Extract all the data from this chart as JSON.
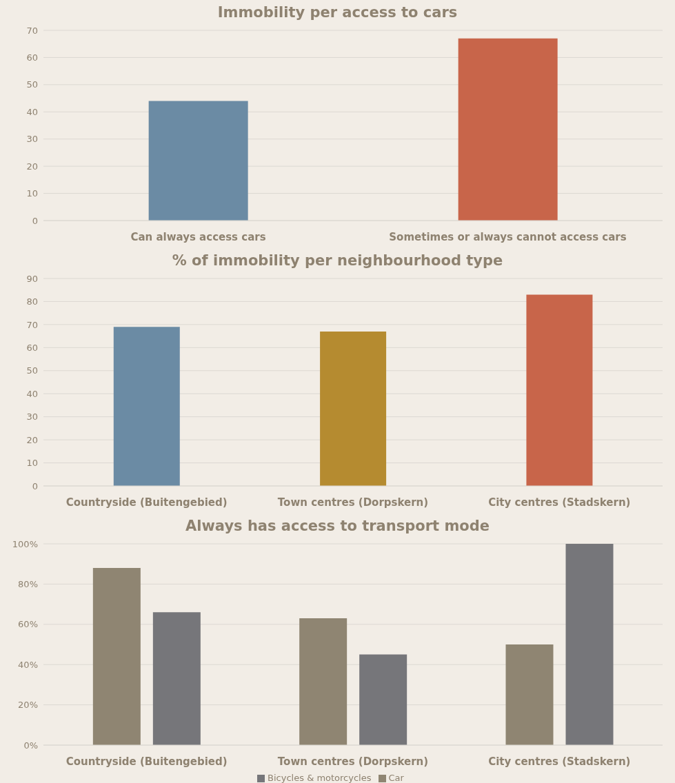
{
  "chart_data": [
    {
      "type": "bar",
      "title": "Immobility per access to cars",
      "categories": [
        "Can always access cars",
        "Sometimes or always cannot access cars"
      ],
      "values": [
        44,
        67
      ],
      "colors": [
        "#6b8ba4",
        "#c8654a"
      ],
      "ylim": [
        0,
        70
      ],
      "yticks": [
        0,
        10,
        20,
        30,
        40,
        50,
        60,
        70
      ],
      "grid": "y"
    },
    {
      "type": "bar",
      "title": "% of immobility per neighbourhood type",
      "categories": [
        "Countryside (Buitengebied)",
        "Town centres (Dorpskern)",
        "City centres (Stadskern)"
      ],
      "values": [
        69,
        67,
        83
      ],
      "colors": [
        "#6b8ba4",
        "#b58b30",
        "#c8654a"
      ],
      "ylim": [
        0,
        90
      ],
      "yticks": [
        0,
        10,
        20,
        30,
        40,
        50,
        60,
        70,
        80,
        90
      ],
      "grid": "y"
    },
    {
      "type": "bar",
      "title": "Always has access to transport mode",
      "categories": [
        "Countryside (Buitengebied)",
        "Town centres (Dorpskern)",
        "City centres (Stadskern)"
      ],
      "series": [
        {
          "name": "Car",
          "color": "#8f8572",
          "values": [
            88,
            63,
            50
          ]
        },
        {
          "name": "Bicycles & motorcycles",
          "color": "#76767a",
          "values": [
            66,
            45,
            100
          ]
        }
      ],
      "ylim": [
        0,
        100
      ],
      "yticks": [
        {
          "value": 0,
          "label": "0%"
        },
        {
          "value": 20,
          "label": "20%"
        },
        {
          "value": 40,
          "label": "40%"
        },
        {
          "value": 60,
          "label": "60%"
        },
        {
          "value": 80,
          "label": "80%"
        },
        {
          "value": 100,
          "label": "100%"
        }
      ],
      "grid": "y",
      "legend": "bottom"
    }
  ]
}
